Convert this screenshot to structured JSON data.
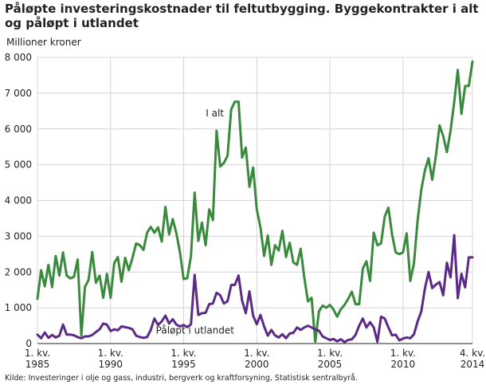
{
  "chart_data": {
    "type": "line",
    "title": "Påløpte investeringskostnader til feltutbygging. Byggekontrakter i alt og påløpt i utlandet",
    "title_lines": [
      "Påløpte investeringskostnader til feltutbygging. Byggekontrakter i alt",
      "og påløpt i utlandet"
    ],
    "ylabel": "Millioner kroner",
    "ylim": [
      0,
      8000
    ],
    "yticks": [
      0,
      1000,
      2000,
      3000,
      4000,
      5000,
      6000,
      7000,
      8000
    ],
    "ytick_labels": [
      "0",
      "1 000",
      "2 000",
      "3 000",
      "4 000",
      "5 000",
      "6 000",
      "7 000",
      "8 000"
    ],
    "xlim": [
      1985,
      2014.75
    ],
    "x_tick_labels": [
      {
        "x": 1985,
        "line1": "1. kv.",
        "line2": "1985"
      },
      {
        "x": 1990,
        "line1": "1. kv.",
        "line2": "1990"
      },
      {
        "x": 1995,
        "line1": "1. kv.",
        "line2": "1995"
      },
      {
        "x": 2000,
        "line1": "1. kv.",
        "line2": "2000"
      },
      {
        "x": 2005,
        "line1": "1. kv.",
        "line2": "2005"
      },
      {
        "x": 2010,
        "line1": "1. kv.",
        "line2": "2010"
      },
      {
        "x": 2014.75,
        "line1": "4. kv.",
        "line2": "2014"
      }
    ],
    "grid": true,
    "series": [
      {
        "name": "I alt",
        "color": "#3a8a3e",
        "points": [
          [
            1985.0,
            1250
          ],
          [
            1985.25,
            2050
          ],
          [
            1985.5,
            1600
          ],
          [
            1985.75,
            2200
          ],
          [
            1986.0,
            1580
          ],
          [
            1986.25,
            2450
          ],
          [
            1986.5,
            1900
          ],
          [
            1986.75,
            2550
          ],
          [
            1987.0,
            1900
          ],
          [
            1987.25,
            1820
          ],
          [
            1987.5,
            1870
          ],
          [
            1987.75,
            2350
          ],
          [
            1988.0,
            230
          ],
          [
            1988.25,
            1580
          ],
          [
            1988.5,
            1780
          ],
          [
            1988.75,
            2560
          ],
          [
            1989.0,
            1700
          ],
          [
            1989.25,
            1900
          ],
          [
            1989.5,
            1280
          ],
          [
            1989.75,
            1950
          ],
          [
            1990.0,
            1280
          ],
          [
            1990.25,
            2250
          ],
          [
            1990.5,
            2420
          ],
          [
            1990.75,
            1730
          ],
          [
            1991.0,
            2400
          ],
          [
            1991.25,
            2050
          ],
          [
            1991.5,
            2400
          ],
          [
            1991.75,
            2800
          ],
          [
            1992.0,
            2750
          ],
          [
            1992.25,
            2620
          ],
          [
            1992.5,
            3100
          ],
          [
            1992.75,
            3260
          ],
          [
            1993.0,
            3100
          ],
          [
            1993.25,
            3250
          ],
          [
            1993.5,
            2850
          ],
          [
            1993.75,
            3820
          ],
          [
            1994.0,
            3050
          ],
          [
            1994.25,
            3480
          ],
          [
            1994.5,
            3080
          ],
          [
            1994.75,
            2550
          ],
          [
            1995.0,
            1800
          ],
          [
            1995.25,
            1830
          ],
          [
            1995.5,
            2450
          ],
          [
            1995.75,
            4220
          ],
          [
            1996.0,
            2870
          ],
          [
            1996.25,
            3380
          ],
          [
            1996.5,
            2750
          ],
          [
            1996.75,
            3750
          ],
          [
            1997.0,
            3450
          ],
          [
            1997.25,
            5950
          ],
          [
            1997.5,
            4950
          ],
          [
            1997.75,
            5050
          ],
          [
            1998.0,
            5250
          ],
          [
            1998.25,
            6550
          ],
          [
            1998.5,
            6760
          ],
          [
            1998.75,
            6760
          ],
          [
            1999.0,
            5200
          ],
          [
            1999.25,
            5480
          ],
          [
            1999.5,
            4380
          ],
          [
            1999.75,
            4920
          ],
          [
            2000.0,
            3750
          ],
          [
            2000.25,
            3250
          ],
          [
            2000.5,
            2450
          ],
          [
            2000.75,
            3020
          ],
          [
            2001.0,
            2200
          ],
          [
            2001.25,
            2750
          ],
          [
            2001.5,
            2600
          ],
          [
            2001.75,
            3150
          ],
          [
            2002.0,
            2420
          ],
          [
            2002.25,
            2820
          ],
          [
            2002.5,
            2270
          ],
          [
            2002.75,
            2200
          ],
          [
            2003.0,
            2650
          ],
          [
            2003.25,
            1850
          ],
          [
            2003.5,
            1180
          ],
          [
            2003.75,
            1280
          ],
          [
            2004.0,
            50
          ],
          [
            2004.25,
            900
          ],
          [
            2004.5,
            1060
          ],
          [
            2004.75,
            1000
          ],
          [
            2005.0,
            1080
          ],
          [
            2005.25,
            950
          ],
          [
            2005.5,
            750
          ],
          [
            2005.75,
            960
          ],
          [
            2006.0,
            1080
          ],
          [
            2006.25,
            1250
          ],
          [
            2006.5,
            1450
          ],
          [
            2006.75,
            1100
          ],
          [
            2007.0,
            1100
          ],
          [
            2007.25,
            2100
          ],
          [
            2007.5,
            2300
          ],
          [
            2007.75,
            1750
          ],
          [
            2008.0,
            3100
          ],
          [
            2008.25,
            2750
          ],
          [
            2008.5,
            2800
          ],
          [
            2008.75,
            3550
          ],
          [
            2009.0,
            3800
          ],
          [
            2009.25,
            3050
          ],
          [
            2009.5,
            2550
          ],
          [
            2009.75,
            2500
          ],
          [
            2010.0,
            2550
          ],
          [
            2010.25,
            3080
          ],
          [
            2010.5,
            1750
          ],
          [
            2010.75,
            2250
          ],
          [
            2011.0,
            3450
          ],
          [
            2011.25,
            4300
          ],
          [
            2011.5,
            4850
          ],
          [
            2011.75,
            5180
          ],
          [
            2012.0,
            4580
          ],
          [
            2012.25,
            5250
          ],
          [
            2012.5,
            6100
          ],
          [
            2012.75,
            5800
          ],
          [
            2013.0,
            5350
          ],
          [
            2013.25,
            5950
          ],
          [
            2013.5,
            6750
          ],
          [
            2013.75,
            7650
          ],
          [
            2014.0,
            6420
          ],
          [
            2014.25,
            7200
          ],
          [
            2014.5,
            7200
          ],
          [
            2014.75,
            7880
          ]
        ]
      },
      {
        "name": "Påløpt i utlandet",
        "color": "#5b2a86",
        "points": [
          [
            1985.0,
            250
          ],
          [
            1985.25,
            150
          ],
          [
            1985.5,
            310
          ],
          [
            1985.75,
            160
          ],
          [
            1986.0,
            240
          ],
          [
            1986.25,
            170
          ],
          [
            1986.5,
            220
          ],
          [
            1986.75,
            530
          ],
          [
            1987.0,
            250
          ],
          [
            1987.25,
            250
          ],
          [
            1987.5,
            230
          ],
          [
            1987.75,
            180
          ],
          [
            1988.0,
            150
          ],
          [
            1988.25,
            200
          ],
          [
            1988.5,
            200
          ],
          [
            1988.75,
            240
          ],
          [
            1989.0,
            320
          ],
          [
            1989.25,
            400
          ],
          [
            1989.5,
            560
          ],
          [
            1989.75,
            530
          ],
          [
            1990.0,
            350
          ],
          [
            1990.25,
            400
          ],
          [
            1990.5,
            370
          ],
          [
            1990.75,
            480
          ],
          [
            1991.0,
            460
          ],
          [
            1991.25,
            440
          ],
          [
            1991.5,
            400
          ],
          [
            1991.75,
            220
          ],
          [
            1992.0,
            180
          ],
          [
            1992.25,
            160
          ],
          [
            1992.5,
            180
          ],
          [
            1992.75,
            380
          ],
          [
            1993.0,
            700
          ],
          [
            1993.25,
            520
          ],
          [
            1993.5,
            620
          ],
          [
            1993.75,
            780
          ],
          [
            1994.0,
            560
          ],
          [
            1994.25,
            680
          ],
          [
            1994.5,
            530
          ],
          [
            1994.75,
            480
          ],
          [
            1995.0,
            520
          ],
          [
            1995.25,
            460
          ],
          [
            1995.5,
            540
          ],
          [
            1995.75,
            1920
          ],
          [
            1996.0,
            800
          ],
          [
            1996.25,
            850
          ],
          [
            1996.5,
            860
          ],
          [
            1996.75,
            1100
          ],
          [
            1997.0,
            1120
          ],
          [
            1997.25,
            1420
          ],
          [
            1997.5,
            1350
          ],
          [
            1997.75,
            1120
          ],
          [
            1998.0,
            1180
          ],
          [
            1998.25,
            1640
          ],
          [
            1998.5,
            1640
          ],
          [
            1998.75,
            1900
          ],
          [
            1999.0,
            1200
          ],
          [
            1999.25,
            850
          ],
          [
            1999.5,
            1460
          ],
          [
            1999.75,
            780
          ],
          [
            2000.0,
            540
          ],
          [
            2000.25,
            800
          ],
          [
            2000.5,
            480
          ],
          [
            2000.75,
            220
          ],
          [
            2001.0,
            380
          ],
          [
            2001.25,
            230
          ],
          [
            2001.5,
            170
          ],
          [
            2001.75,
            260
          ],
          [
            2002.0,
            150
          ],
          [
            2002.25,
            280
          ],
          [
            2002.5,
            300
          ],
          [
            2002.75,
            450
          ],
          [
            2003.0,
            380
          ],
          [
            2003.25,
            450
          ],
          [
            2003.5,
            500
          ],
          [
            2003.75,
            450
          ],
          [
            2004.0,
            400
          ],
          [
            2004.25,
            360
          ],
          [
            2004.5,
            200
          ],
          [
            2004.75,
            150
          ],
          [
            2005.0,
            100
          ],
          [
            2005.25,
            130
          ],
          [
            2005.5,
            60
          ],
          [
            2005.75,
            120
          ],
          [
            2006.0,
            40
          ],
          [
            2006.25,
            100
          ],
          [
            2006.5,
            120
          ],
          [
            2006.75,
            240
          ],
          [
            2007.0,
            500
          ],
          [
            2007.25,
            700
          ],
          [
            2007.5,
            450
          ],
          [
            2007.75,
            600
          ],
          [
            2008.0,
            450
          ],
          [
            2008.25,
            50
          ],
          [
            2008.5,
            750
          ],
          [
            2008.75,
            700
          ],
          [
            2009.0,
            450
          ],
          [
            2009.25,
            230
          ],
          [
            2009.5,
            250
          ],
          [
            2009.75,
            90
          ],
          [
            2010.0,
            140
          ],
          [
            2010.25,
            170
          ],
          [
            2010.5,
            150
          ],
          [
            2010.75,
            260
          ],
          [
            2011.0,
            620
          ],
          [
            2011.25,
            900
          ],
          [
            2011.5,
            1550
          ],
          [
            2011.75,
            2000
          ],
          [
            2012.0,
            1550
          ],
          [
            2012.25,
            1650
          ],
          [
            2012.5,
            1720
          ],
          [
            2012.75,
            1350
          ],
          [
            2013.0,
            2260
          ],
          [
            2013.25,
            1850
          ],
          [
            2013.5,
            3030
          ],
          [
            2013.75,
            1270
          ],
          [
            2014.0,
            1950
          ],
          [
            2014.25,
            1570
          ],
          [
            2014.5,
            2410
          ],
          [
            2014.75,
            2410
          ]
        ]
      }
    ],
    "annotations": [
      {
        "text": "I alt",
        "x": 1997.75,
        "y": 6350,
        "anchor": "end"
      },
      {
        "text": "Påløpt i utlandet",
        "x": 1993.1,
        "y": 280,
        "anchor": "start"
      }
    ],
    "source": "Kilde: Investeringer i olje og gass, industri, bergverk og kraftforsyning, Statistisk sentralbyrå."
  }
}
